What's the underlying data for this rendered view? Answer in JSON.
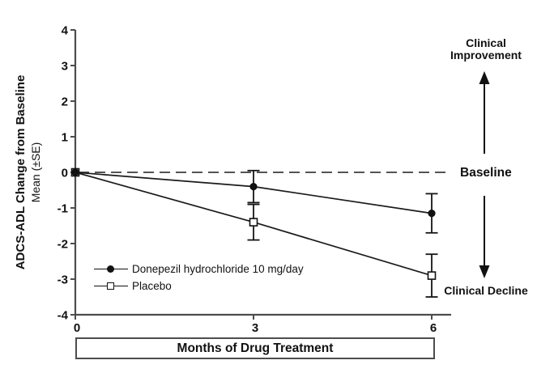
{
  "figure": {
    "ylabel_line1": "ADCS-ADL Change from Baseline",
    "ylabel_line2": "Mean (±SE)",
    "xlabel": "Months of Drug Treatment",
    "annotations": {
      "improvement": "Clinical Improvement",
      "baseline": "Baseline",
      "decline": "Clinical Decline"
    }
  },
  "chart_data": {
    "type": "line",
    "title": "",
    "xlabel": "Months of Drug Treatment",
    "ylabel": "ADCS-ADL Change from Baseline Mean (±SE)",
    "x": [
      0,
      3,
      6
    ],
    "xticks": [
      "0",
      "3",
      "6"
    ],
    "yticks": [
      "4",
      "3",
      "2",
      "1",
      "0",
      "-1",
      "-2",
      "-3",
      "-4"
    ],
    "xlim": [
      0,
      6
    ],
    "ylim": [
      -4,
      4
    ],
    "grid": false,
    "baseline_value": 0,
    "legend_position": "inside-lower-left",
    "series": [
      {
        "name": "Donepezil hydrochloride 10 mg/day",
        "marker": "filled-circle",
        "values": [
          0,
          -0.4,
          -1.15
        ],
        "se": [
          0,
          0.45,
          0.55
        ]
      },
      {
        "name": "Placebo",
        "marker": "open-square",
        "values": [
          0,
          -1.4,
          -2.9
        ],
        "se": [
          0,
          0.5,
          0.6
        ]
      }
    ],
    "colors": {
      "series_line": "#1a1a1a",
      "axis": "#4d4d4d",
      "text": "#111111",
      "baseline_dash": "#3d3d3d",
      "background": "#ffffff"
    }
  }
}
